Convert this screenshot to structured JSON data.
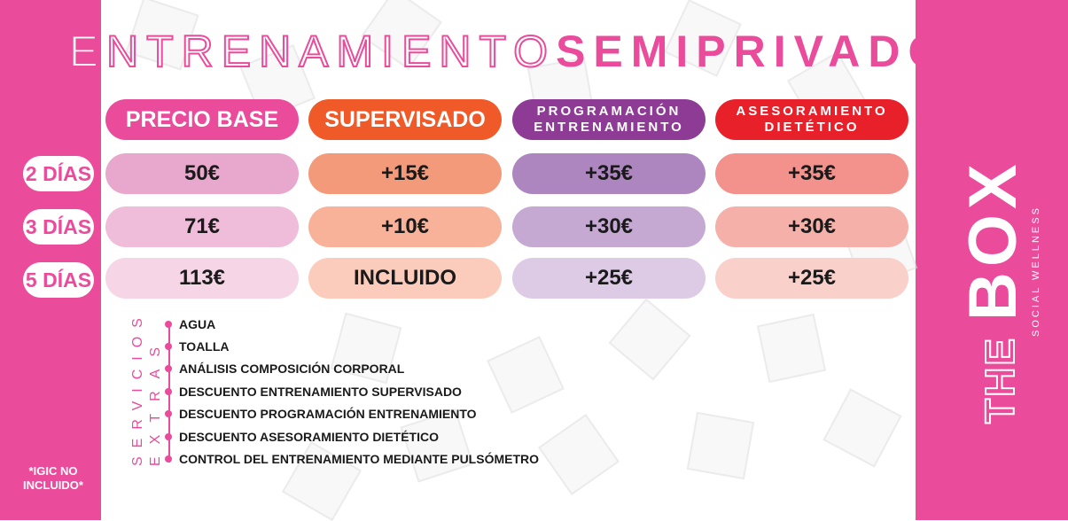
{
  "title": {
    "part1": "ENTRENAMIENTO",
    "part2": "SEMIPRIVADO"
  },
  "colors": {
    "brand_pink": "#ea4b9b",
    "orange": "#f05a28",
    "purple": "#8e3b95",
    "red": "#e8202a"
  },
  "headers": [
    {
      "label": "PRECIO BASE",
      "color": "#ea4b9b"
    },
    {
      "label": "SUPERVISADO",
      "color": "#f05a28"
    },
    {
      "label_line1": "PROGRAMACIÓN",
      "label_line2": "ENTRENAMIENTO",
      "color": "#8e3b95"
    },
    {
      "label_line1": "ASESORAMIENTO",
      "label_line2": "DIETÉTICO",
      "color": "#e8202a"
    }
  ],
  "rows": [
    {
      "day": "2 DÍAS",
      "cells": [
        "50€",
        "+15€",
        "+35€",
        "+35€"
      ]
    },
    {
      "day": "3 DÍAS",
      "cells": [
        "71€",
        "+10€",
        "+30€",
        "+30€"
      ]
    },
    {
      "day": "5 DÍAS",
      "cells": [
        "113€",
        "INCLUIDO",
        "+25€",
        "+25€"
      ]
    }
  ],
  "extras": {
    "label_line1": "SERVICIOS",
    "label_line2": "EXTRAS",
    "items": [
      "AGUA",
      "TOALLA",
      "ANÁLISIS COMPOSICIÓN CORPORAL",
      "DESCUENTO ENTRENAMIENTO SUPERVISADO",
      "DESCUENTO PROGRAMACIÓN ENTRENAMIENTO",
      "DESCUENTO ASESORAMIENTO DIETÉTICO",
      "CONTROL DEL ENTRENAMIENTO MEDIANTE PULSÓMETRO"
    ]
  },
  "note": {
    "line1": "*IGIC NO",
    "line2": "INCLUIDO*"
  },
  "logo": {
    "line1": "THE",
    "line2": "BOX",
    "tagline": "SOCIAL WELLNESS"
  }
}
